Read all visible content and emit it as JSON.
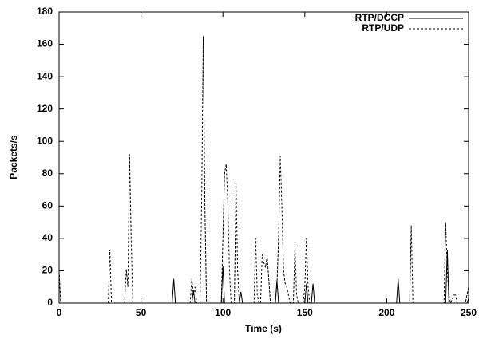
{
  "chart_data": {
    "type": "line",
    "x_label": "Time (s)",
    "y_label": "Packets/s",
    "x": [
      0,
      1,
      30,
      31,
      32,
      40,
      41,
      42,
      43,
      44,
      45,
      69,
      70,
      71,
      80,
      81,
      82,
      83,
      84,
      86,
      87,
      88,
      89,
      90,
      99,
      100,
      101,
      102,
      103,
      104,
      105,
      107,
      108,
      109,
      110,
      111,
      112,
      119,
      120,
      121,
      122,
      123,
      124,
      125,
      126,
      127,
      128,
      129,
      132,
      133,
      134,
      135,
      136,
      137,
      138,
      139,
      140,
      141,
      143,
      144,
      145,
      146,
      149,
      150,
      151,
      152,
      153,
      154,
      155,
      156,
      206,
      207,
      208,
      214,
      215,
      216,
      235,
      236,
      237,
      238,
      239,
      241,
      242,
      243,
      248,
      249,
      250
    ],
    "series": [
      {
        "name": "RTP/DCCP",
        "color": "#000000",
        "dash": "solid",
        "values": [
          0,
          0,
          0,
          0,
          0,
          0,
          0,
          0,
          0,
          0,
          0,
          0,
          15,
          0,
          0,
          0,
          8,
          0,
          0,
          0,
          0,
          0,
          0,
          0,
          0,
          23,
          0,
          0,
          0,
          0,
          0,
          0,
          0,
          0,
          0,
          7,
          0,
          0,
          0,
          0,
          0,
          0,
          0,
          0,
          0,
          0,
          0,
          0,
          0,
          14,
          0,
          0,
          0,
          0,
          0,
          0,
          0,
          0,
          0,
          0,
          0,
          0,
          0,
          0,
          12,
          0,
          0,
          0,
          12,
          0,
          0,
          15,
          0,
          0,
          0,
          0,
          0,
          0,
          33,
          0,
          0,
          0,
          0,
          0,
          0,
          0,
          3
        ]
      },
      {
        "name": "RTP/UDP",
        "color": "#000000",
        "dash": "dashed",
        "values": [
          20,
          0,
          0,
          33,
          0,
          0,
          21,
          10,
          92,
          40,
          0,
          0,
          0,
          0,
          0,
          15,
          5,
          10,
          0,
          0,
          60,
          165,
          60,
          0,
          0,
          40,
          80,
          86,
          62,
          20,
          0,
          0,
          74,
          20,
          0,
          0,
          0,
          0,
          40,
          5,
          0,
          0,
          30,
          25,
          22,
          29,
          15,
          0,
          0,
          12,
          40,
          91,
          60,
          20,
          12,
          10,
          5,
          0,
          0,
          35,
          5,
          0,
          0,
          10,
          40,
          10,
          0,
          0,
          0,
          0,
          0,
          0,
          0,
          0,
          48,
          0,
          0,
          50,
          20,
          5,
          0,
          5,
          5,
          0,
          0,
          5,
          10
        ]
      }
    ],
    "xlim": [
      0,
      250
    ],
    "xticks": [
      0,
      50,
      100,
      150,
      200,
      250
    ],
    "ylim": [
      0,
      180
    ],
    "yticks": [
      0,
      20,
      40,
      60,
      80,
      100,
      120,
      140,
      160,
      180
    ],
    "legend": "top-right"
  }
}
